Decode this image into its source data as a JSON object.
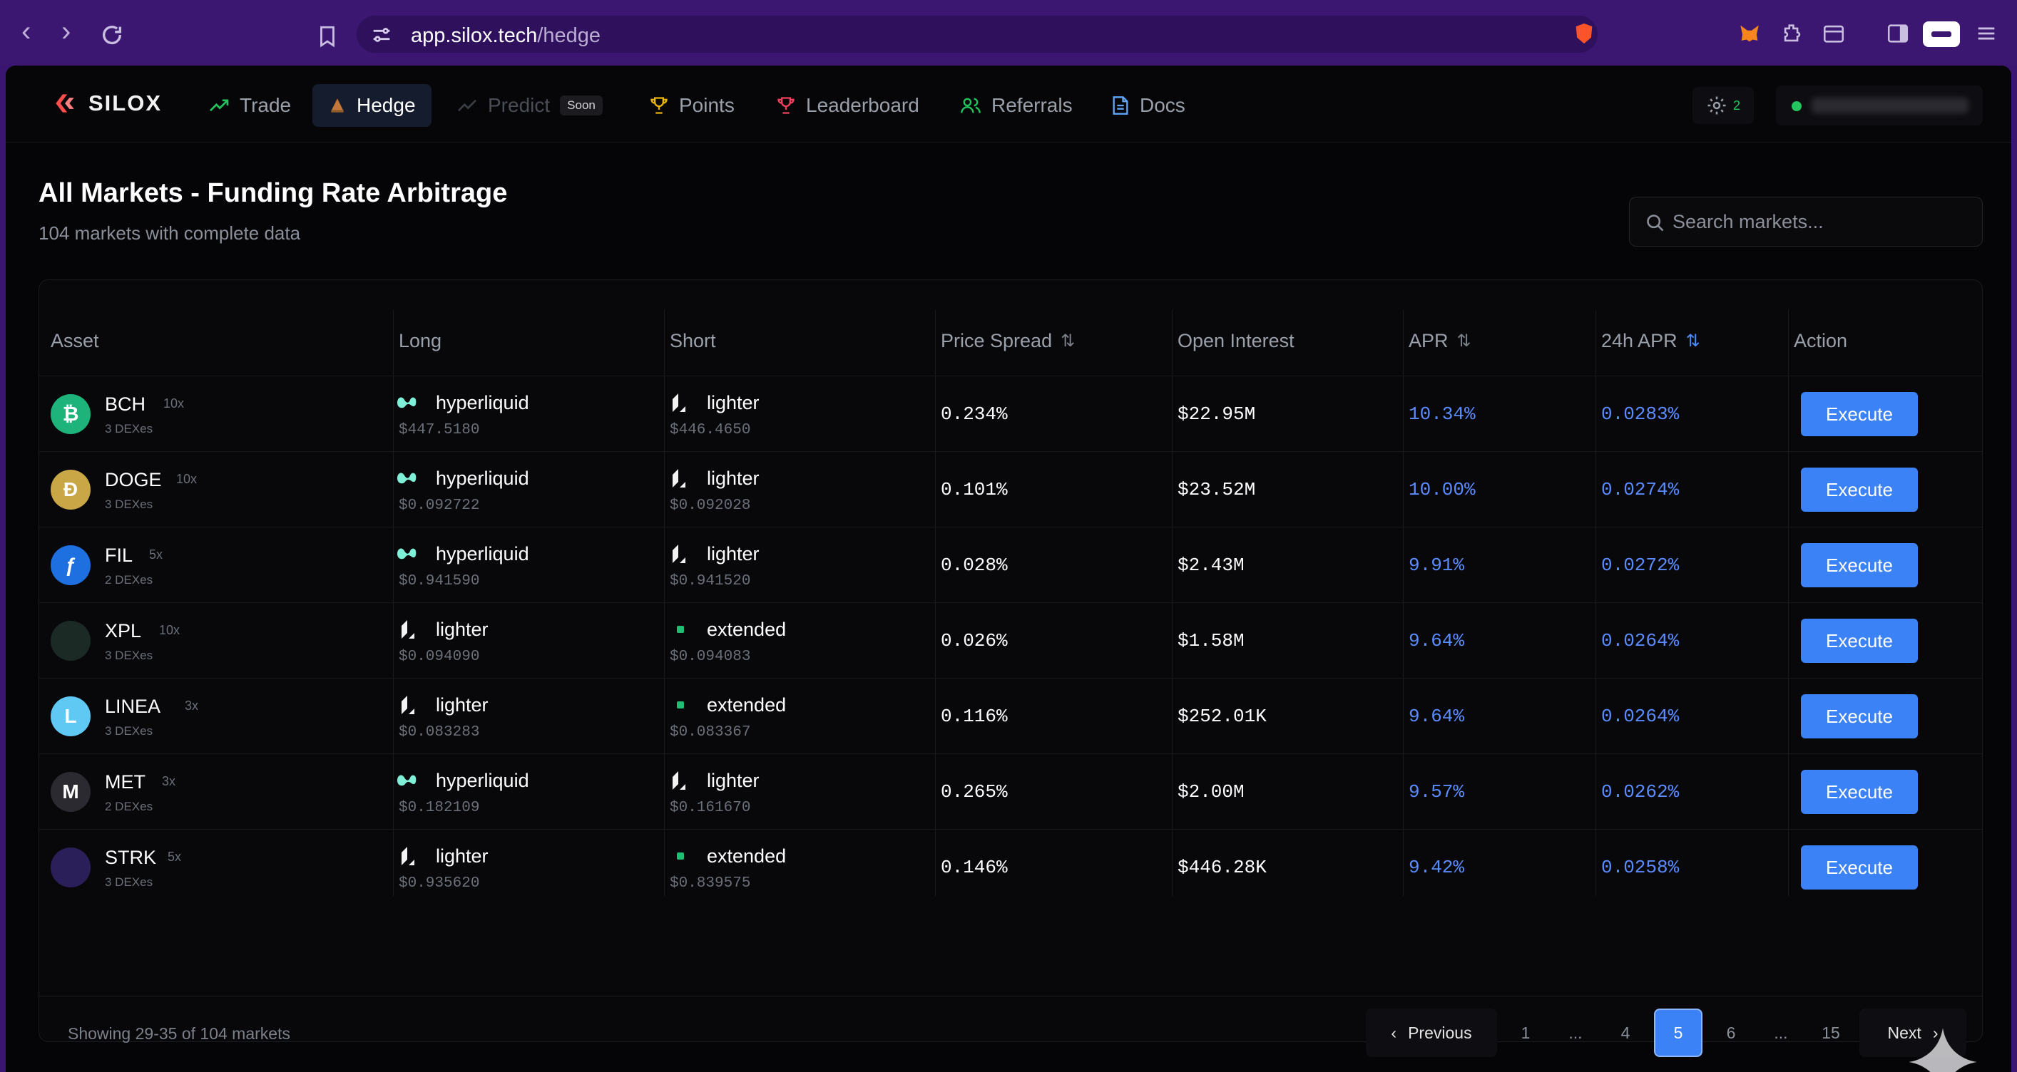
{
  "browser": {
    "url_host": "app.silox.tech",
    "url_path": "/hedge"
  },
  "nav": {
    "logo": "SILOX",
    "items": [
      {
        "label": "Trade"
      },
      {
        "label": "Hedge"
      },
      {
        "label": "Predict",
        "badge": "Soon"
      },
      {
        "label": "Points"
      },
      {
        "label": "Leaderboard"
      },
      {
        "label": "Referrals"
      },
      {
        "label": "Docs"
      }
    ],
    "settings_count": "2"
  },
  "header": {
    "title": "All Markets - Funding Rate Arbitrage",
    "subtitle": "104 markets with complete data",
    "search_placeholder": "Search markets..."
  },
  "table": {
    "columns": [
      "Asset",
      "Long",
      "Short",
      "Price Spread",
      "Open Interest",
      "APR",
      "24h APR",
      "Action"
    ],
    "rows": [
      {
        "asset": "BCH",
        "leverage": "10x",
        "dexes": "3 DEXes",
        "icon_color": "#1db37b",
        "icon_glyph": "₿",
        "long": {
          "exchange": "hyperliquid",
          "price": "$447.5180"
        },
        "short": {
          "exchange": "lighter",
          "price": "$446.4650"
        },
        "spread": "0.234%",
        "oi": "$22.95M",
        "apr": "10.34%",
        "apr24": "0.0283%",
        "action": "Execute"
      },
      {
        "asset": "DOGE",
        "leverage": "10x",
        "dexes": "3 DEXes",
        "icon_color": "#c9a646",
        "icon_glyph": "Ð",
        "long": {
          "exchange": "hyperliquid",
          "price": "$0.092722"
        },
        "short": {
          "exchange": "lighter",
          "price": "$0.092028"
        },
        "spread": "0.101%",
        "oi": "$23.52M",
        "apr": "10.00%",
        "apr24": "0.0274%",
        "action": "Execute"
      },
      {
        "asset": "FIL",
        "leverage": "5x",
        "dexes": "2 DEXes",
        "icon_color": "#1e6fe0",
        "icon_glyph": "ƒ",
        "long": {
          "exchange": "hyperliquid",
          "price": "$0.941590"
        },
        "short": {
          "exchange": "lighter",
          "price": "$0.941520"
        },
        "spread": "0.028%",
        "oi": "$2.43M",
        "apr": "9.91%",
        "apr24": "0.0272%",
        "action": "Execute"
      },
      {
        "asset": "XPL",
        "leverage": "10x",
        "dexes": "3 DEXes",
        "icon_color": "#1c2a26",
        "icon_glyph": "",
        "long": {
          "exchange": "lighter",
          "price": "$0.094090"
        },
        "short": {
          "exchange": "extended",
          "price": "$0.094083"
        },
        "spread": "0.026%",
        "oi": "$1.58M",
        "apr": "9.64%",
        "apr24": "0.0264%",
        "action": "Execute"
      },
      {
        "asset": "LINEA",
        "leverage": "3x",
        "dexes": "3 DEXes",
        "icon_color": "#5fc8f3",
        "icon_glyph": "L",
        "long": {
          "exchange": "lighter",
          "price": "$0.083283"
        },
        "short": {
          "exchange": "extended",
          "price": "$0.083367"
        },
        "spread": "0.116%",
        "oi": "$252.01K",
        "apr": "9.64%",
        "apr24": "0.0264%",
        "action": "Execute"
      },
      {
        "asset": "MET",
        "leverage": "3x",
        "dexes": "2 DEXes",
        "icon_color": "#2a2a30",
        "icon_glyph": "M",
        "long": {
          "exchange": "hyperliquid",
          "price": "$0.182109"
        },
        "short": {
          "exchange": "lighter",
          "price": "$0.161670"
        },
        "spread": "0.265%",
        "oi": "$2.00M",
        "apr": "9.57%",
        "apr24": "0.0262%",
        "action": "Execute"
      },
      {
        "asset": "STRK",
        "leverage": "5x",
        "dexes": "3 DEXes",
        "icon_color": "#2b1f5a",
        "icon_glyph": "",
        "long": {
          "exchange": "lighter",
          "price": "$0.935620"
        },
        "short": {
          "exchange": "extended",
          "price": "$0.839575"
        },
        "spread": "0.146%",
        "oi": "$446.28K",
        "apr": "9.42%",
        "apr24": "0.0258%",
        "action": "Execute"
      }
    ]
  },
  "footer": {
    "showing": "Showing 29-35 of 104 markets",
    "previous": "Previous",
    "next": "Next",
    "pages": [
      "1",
      "...",
      "4",
      "5",
      "6",
      "...",
      "15"
    ],
    "current_page": "5"
  }
}
